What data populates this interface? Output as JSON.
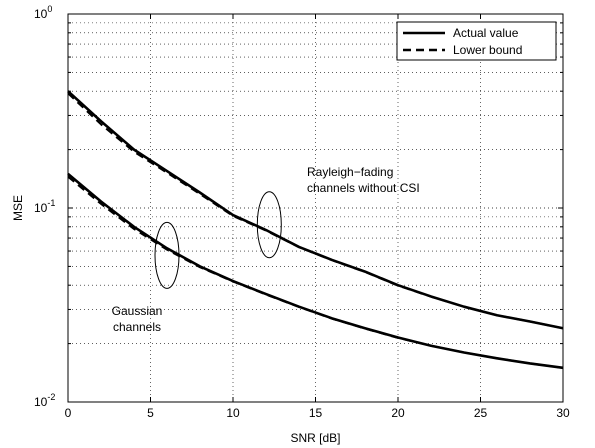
{
  "chart_data": {
    "type": "line",
    "title": "",
    "xlabel": "SNR [dB]",
    "ylabel": "MSE",
    "xlim": [
      0,
      30
    ],
    "ylim": [
      0.01,
      1
    ],
    "yscale": "log",
    "grid": true,
    "legend_position": "top-right",
    "x_ticks": [
      "0",
      "5",
      "10",
      "15",
      "20",
      "25",
      "30"
    ],
    "y_ticks": [
      {
        "base": "10",
        "exp": "-2"
      },
      {
        "base": "10",
        "exp": "-1"
      },
      {
        "base": "10",
        "exp": "0"
      }
    ],
    "legend": [
      {
        "label": "Actual value",
        "style": "solid"
      },
      {
        "label": "Lower bound",
        "style": "dashed"
      }
    ],
    "annotations": [
      {
        "lines": [
          "Rayleigh−fading",
          "channels without CSI"
        ]
      },
      {
        "lines": [
          "Gaussian",
          "channels"
        ]
      }
    ],
    "x": [
      0,
      2,
      4,
      6,
      8,
      10,
      12,
      14,
      16,
      18,
      20,
      22,
      24,
      26,
      28,
      30
    ],
    "series": [
      {
        "name": "Actual value",
        "group": "Rayleigh",
        "style": "solid",
        "values": [
          0.4,
          0.28,
          0.2,
          0.155,
          0.12,
          0.092,
          0.077,
          0.063,
          0.054,
          0.047,
          0.04,
          0.035,
          0.031,
          0.028,
          0.026,
          0.024
        ]
      },
      {
        "name": "Lower bound",
        "group": "Rayleigh",
        "style": "dashed",
        "values": [
          0.39,
          0.27,
          0.195,
          0.152,
          0.118,
          0.091,
          0.0765,
          0.0628,
          0.0538,
          0.0468,
          0.0398,
          0.0349,
          0.031,
          0.028,
          0.026,
          0.024
        ]
      },
      {
        "name": "Actual value",
        "group": "Gaussian",
        "style": "solid",
        "values": [
          0.15,
          0.108,
          0.08,
          0.062,
          0.05,
          0.042,
          0.036,
          0.031,
          0.027,
          0.024,
          0.0215,
          0.0195,
          0.018,
          0.0168,
          0.0158,
          0.015
        ]
      },
      {
        "name": "Lower bound",
        "group": "Gaussian",
        "style": "dashed",
        "values": [
          0.145,
          0.105,
          0.078,
          0.061,
          0.0495,
          0.0418,
          0.0358,
          0.0309,
          0.0269,
          0.0239,
          0.0214,
          0.0195,
          0.018,
          0.0168,
          0.0158,
          0.015
        ]
      }
    ]
  }
}
